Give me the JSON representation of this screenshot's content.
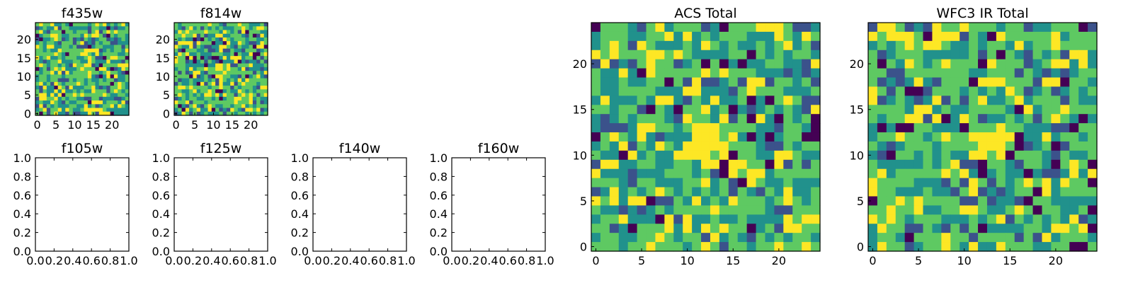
{
  "colormap": [
    "#440154",
    "#3b528b",
    "#21918c",
    "#5ec962",
    "#fde725"
  ],
  "chart_data": [
    {
      "id": "f435w",
      "type": "heatmap",
      "title": "f435w",
      "grid_size": 25,
      "xticks": [
        "0",
        "5",
        "10",
        "15",
        "20"
      ],
      "yticks": [
        "0",
        "5",
        "10",
        "15",
        "20"
      ],
      "values": "random noise image, brighter center"
    },
    {
      "id": "f814w",
      "type": "heatmap",
      "title": "f814w",
      "grid_size": 25,
      "xticks": [
        "0",
        "5",
        "10",
        "15",
        "20"
      ],
      "yticks": [
        "0",
        "5",
        "10",
        "15",
        "20"
      ],
      "values": "random noise image"
    },
    {
      "id": "f105w",
      "type": "heatmap",
      "title": "f105w",
      "empty": true,
      "xticks": [
        "0.0",
        "0.2",
        "0.4",
        "0.6",
        "0.8",
        "1.0"
      ],
      "yticks": [
        "0.0",
        "0.2",
        "0.4",
        "0.6",
        "0.8",
        "1.0"
      ],
      "xlim": [
        0,
        1
      ],
      "ylim": [
        0,
        1
      ]
    },
    {
      "id": "f125w",
      "type": "heatmap",
      "title": "f125w",
      "empty": true,
      "xticks": [
        "0.0",
        "0.2",
        "0.4",
        "0.6",
        "0.8",
        "1.0"
      ],
      "yticks": [
        "0.0",
        "0.2",
        "0.4",
        "0.6",
        "0.8",
        "1.0"
      ],
      "xlim": [
        0,
        1
      ],
      "ylim": [
        0,
        1
      ]
    },
    {
      "id": "f140w",
      "type": "heatmap",
      "title": "f140w",
      "empty": true,
      "xticks": [
        "0.0",
        "0.2",
        "0.4",
        "0.6",
        "0.8",
        "1.0"
      ],
      "yticks": [
        "0.0",
        "0.2",
        "0.4",
        "0.6",
        "0.8",
        "1.0"
      ],
      "xlim": [
        0,
        1
      ],
      "ylim": [
        0,
        1
      ]
    },
    {
      "id": "f160w",
      "type": "heatmap",
      "title": "f160w",
      "empty": true,
      "xticks": [
        "0.0",
        "0.2",
        "0.4",
        "0.6",
        "0.8",
        "1.0"
      ],
      "yticks": [
        "0.0",
        "0.2",
        "0.4",
        "0.6",
        "0.8",
        "1.0"
      ],
      "xlim": [
        0,
        1
      ],
      "ylim": [
        0,
        1
      ]
    },
    {
      "id": "acs-total",
      "type": "heatmap",
      "title": "ACS Total",
      "grid_size": 25,
      "xticks": [
        "0",
        "5",
        "10",
        "15",
        "20"
      ],
      "yticks": [
        "0",
        "5",
        "10",
        "15",
        "20"
      ],
      "values": "random noise image, bright patch near (12-14, 11-12)"
    },
    {
      "id": "wfc3-ir-total",
      "type": "heatmap",
      "title": "WFC3 IR Total",
      "grid_size": 25,
      "xticks": [
        "0",
        "5",
        "10",
        "15",
        "20"
      ],
      "yticks": [
        "0",
        "5",
        "10",
        "15",
        "20"
      ],
      "values": "random noise image, bright patch near (12-13, 11-12)"
    }
  ]
}
